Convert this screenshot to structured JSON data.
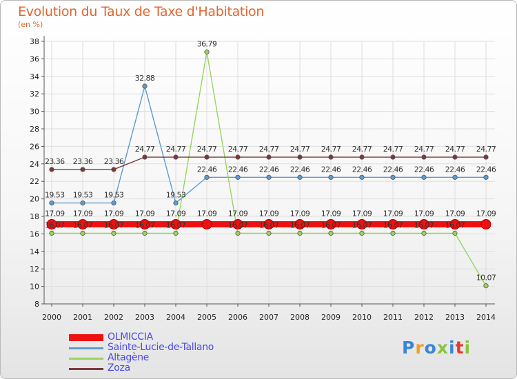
{
  "colors": {
    "title": "#e2662f",
    "axis": "#555555",
    "grid": "#dddddd",
    "tick_text": "#222222",
    "legend_text": "#4b48e8"
  },
  "logo": {
    "text": "Proxiti",
    "letter_colors": [
      "#3a86d6",
      "#f0a020",
      "#3a86d6",
      "#89c43f",
      "#3a86d6",
      "#e53a2e",
      "#89c43f"
    ]
  },
  "chart_data": {
    "type": "line",
    "title": "Evolution du Taux de Taxe d'Habitation",
    "subtitle": "(en %)",
    "xlabel": "",
    "ylabel": "",
    "x": [
      "2000",
      "2001",
      "2002",
      "2003",
      "2004",
      "2005",
      "2006",
      "2007",
      "2008",
      "2009",
      "2010",
      "2011",
      "2012",
      "2013",
      "2014"
    ],
    "ylim": [
      8,
      38
    ],
    "yticks": [
      8,
      10,
      12,
      14,
      16,
      18,
      20,
      22,
      24,
      26,
      28,
      30,
      32,
      34,
      36,
      38
    ],
    "grid": true,
    "legend_position": "bottom-left",
    "series": [
      {
        "name": "OLMICCIA",
        "color": "#ee1111",
        "values": [
          17.09,
          17.09,
          17.09,
          17.09,
          17.09,
          17.09,
          17.09,
          17.09,
          17.09,
          17.09,
          17.09,
          17.09,
          17.09,
          17.09,
          17.09
        ],
        "labels": [
          "17.09",
          "17.09",
          "17.09",
          "17.09",
          "17.09",
          "17.09",
          "17.09",
          "17.09",
          "17.09",
          "17.09",
          "17.09",
          "17.09",
          "17.09",
          "17.09",
          "17.09"
        ]
      },
      {
        "name": "Sainte-Lucie-de-Tallano",
        "color": "#5c9bd0",
        "values": [
          19.53,
          19.53,
          19.53,
          32.88,
          19.53,
          22.46,
          22.46,
          22.46,
          22.46,
          22.46,
          22.46,
          22.46,
          22.46,
          22.46,
          22.46
        ],
        "labels": [
          "19.53",
          "19.53",
          "19.53",
          "32.88",
          "19.53",
          "22.46",
          "22.46",
          "22.46",
          "22.46",
          "22.46",
          "22.46",
          "22.46",
          "22.46",
          "22.46",
          "22.46"
        ]
      },
      {
        "name": "Altagène",
        "color": "#99d45d",
        "values": [
          16.07,
          16.07,
          16.07,
          16.07,
          16.07,
          36.79,
          16.07,
          16.07,
          16.07,
          16.07,
          16.07,
          16.07,
          16.07,
          16.07,
          10.07
        ],
        "labels": [
          "16.07",
          "16.07",
          "16.07",
          "16.07",
          "16.07",
          "36.79",
          "16.07",
          "16.07",
          "16.07",
          "16.07",
          "16.07",
          "16.07",
          "16.07",
          "16.07",
          "10.07"
        ]
      },
      {
        "name": "Zoza",
        "color": "#7a3a3a",
        "values": [
          23.36,
          23.36,
          23.36,
          24.77,
          24.77,
          24.77,
          24.77,
          24.77,
          24.77,
          24.77,
          24.77,
          24.77,
          24.77,
          24.77,
          24.77
        ],
        "labels": [
          "23.36",
          "23.36",
          "23.36",
          "24.77",
          "24.77",
          "24.77",
          "24.77",
          "24.77",
          "24.77",
          "24.77",
          "24.77",
          "24.77",
          "24.77",
          "24.77",
          "24.77"
        ]
      }
    ]
  }
}
